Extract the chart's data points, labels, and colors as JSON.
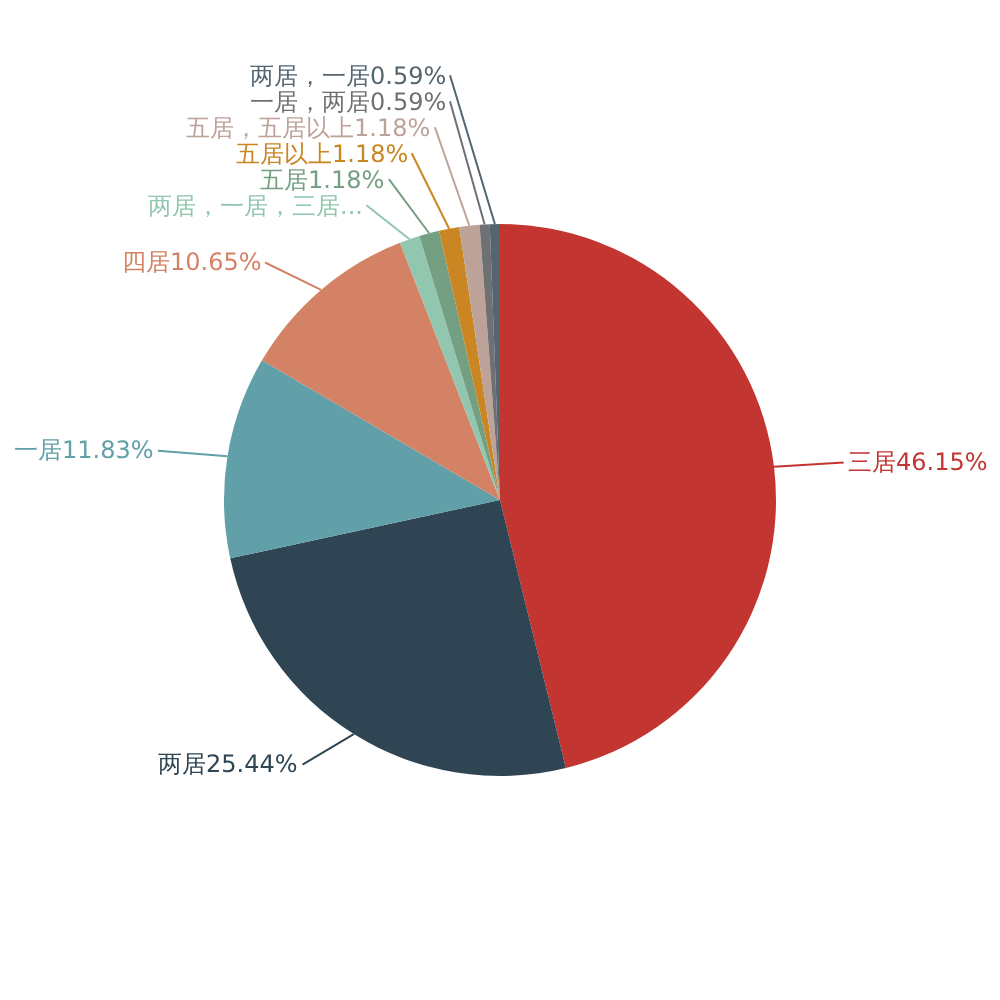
{
  "chart_data": {
    "type": "pie",
    "categories": [
      "三居",
      "两居",
      "一居",
      "四居",
      "两居，一居，三居...",
      "五居",
      "五居以上",
      "五居，五居以上",
      "一居，两居",
      "两居，一居"
    ],
    "values": [
      46.15,
      25.44,
      11.83,
      10.65,
      1.18,
      1.18,
      1.18,
      1.18,
      0.59,
      0.59
    ],
    "value_labels": [
      "46.15%",
      "25.44%",
      "11.83%",
      "10.65%",
      null,
      "1.18%",
      "1.18%",
      "1.18%",
      "0.59%",
      "0.59%"
    ],
    "colors": [
      "#c23531",
      "#2f4554",
      "#61a0a8",
      "#d48265",
      "#91c7ae",
      "#749f83",
      "#ca8622",
      "#bda29a",
      "#6e7074",
      "#546570"
    ],
    "legend": false
  }
}
